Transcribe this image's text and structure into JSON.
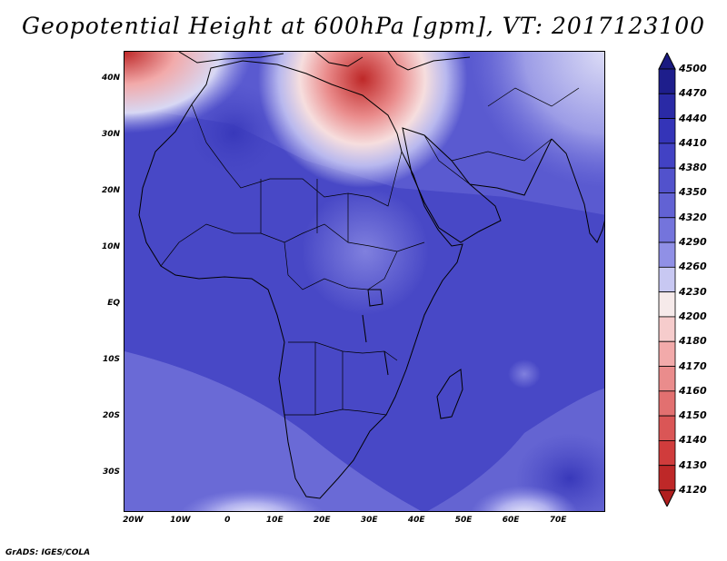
{
  "title": "Geopotential Height at 600hPa [gpm], VT: 2017123100",
  "credit": "GrADS: IGES/COLA",
  "map": {
    "lon_range": [
      -22,
      80
    ],
    "lat_range": [
      -37,
      45
    ],
    "lat_ticks": [
      {
        "value": 40,
        "label": "40N"
      },
      {
        "value": 30,
        "label": "30N"
      },
      {
        "value": 20,
        "label": "20N"
      },
      {
        "value": 10,
        "label": "10N"
      },
      {
        "value": 0,
        "label": "EQ"
      },
      {
        "value": -10,
        "label": "10S"
      },
      {
        "value": -20,
        "label": "20S"
      },
      {
        "value": -30,
        "label": "30S"
      }
    ],
    "lon_ticks": [
      {
        "value": -20,
        "label": "20W"
      },
      {
        "value": -10,
        "label": "10W"
      },
      {
        "value": 0,
        "label": "0"
      },
      {
        "value": 10,
        "label": "10E"
      },
      {
        "value": 20,
        "label": "20E"
      },
      {
        "value": 30,
        "label": "30E"
      },
      {
        "value": 40,
        "label": "40E"
      },
      {
        "value": 50,
        "label": "50E"
      },
      {
        "value": 60,
        "label": "60E"
      },
      {
        "value": 70,
        "label": "70E"
      }
    ]
  },
  "colorbar": {
    "levels": [
      4500,
      4470,
      4440,
      4410,
      4380,
      4350,
      4320,
      4290,
      4260,
      4230,
      4200,
      4180,
      4170,
      4160,
      4150,
      4140,
      4130,
      4120
    ],
    "colors": [
      "#1e1e8c",
      "#2a2aa6",
      "#3434b8",
      "#4242c4",
      "#5252cc",
      "#6262d4",
      "#7474dc",
      "#9090e6",
      "#c8c8f2",
      "#f6eaea",
      "#f6cccc",
      "#f2aaaa",
      "#ea8c8c",
      "#e27070",
      "#da5656",
      "#d03c3c",
      "#be2828"
    ],
    "top_color": "#1a1a80",
    "bottom_color": "#b01e1e"
  }
}
